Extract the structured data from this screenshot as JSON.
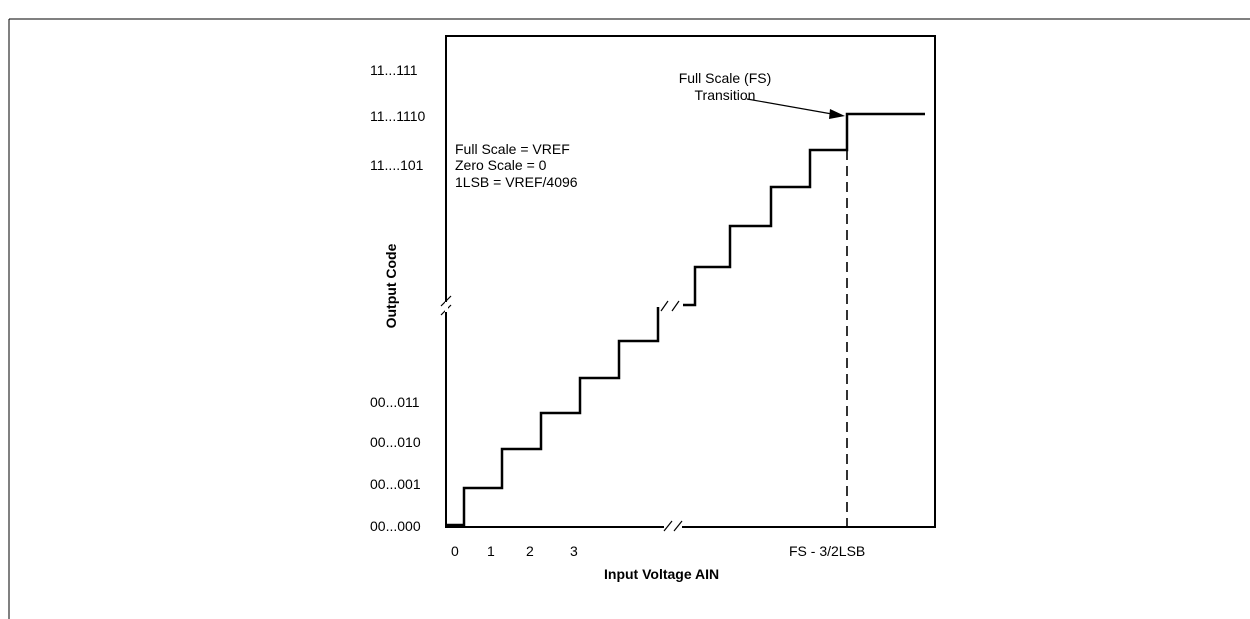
{
  "y_axis": {
    "title": "Output Code",
    "codes": [
      "11...111",
      "11...1110",
      "11....101",
      "00...011",
      "00...010",
      "00...001",
      "00...000"
    ]
  },
  "x_axis": {
    "title": "Input Voltage AIN",
    "ticks": [
      "0",
      "1",
      "2",
      "3",
      "FS - 3/2LSB"
    ]
  },
  "notes": {
    "full_scale_prefix": "Full Scale = V",
    "full_scale_sub": "REF",
    "zero_scale": "Zero Scale = 0",
    "lsb_prefix": "1LSB = V",
    "lsb_sub": "REF",
    "lsb_suffix": "/4096"
  },
  "callout": {
    "line1": "Full Scale (FS)",
    "line2": "Transition"
  }
}
